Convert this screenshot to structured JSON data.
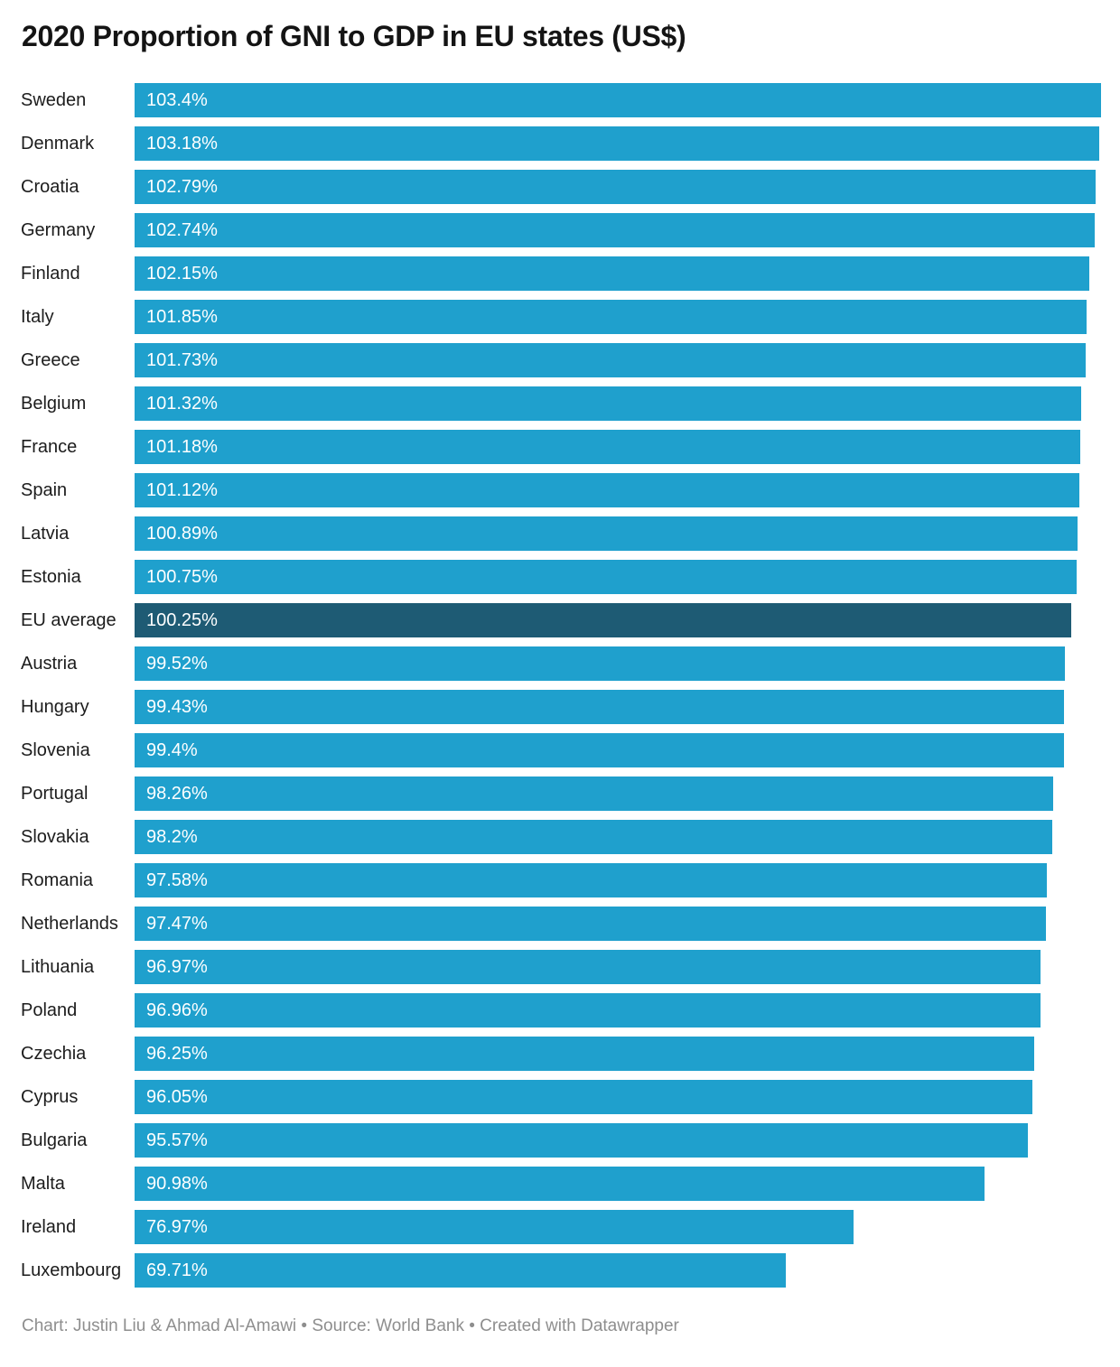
{
  "header": {
    "title": "2020 Proportion of GNI to GDP in EU states (US$)"
  },
  "footer": {
    "text": "Chart: Justin Liu & Ahmad Al-Amawi • Source: World Bank • Created with Datawrapper"
  },
  "colors": {
    "bar": "#1FA0CD",
    "highlight_bar": "#1E5B74",
    "value_label": "#ffffff",
    "category_label": "#1c1c1c",
    "title": "#141414",
    "footer_text": "#8e8e8e",
    "background": "#ffffff"
  },
  "chart_data": {
    "type": "bar",
    "orientation": "horizontal",
    "title": "2020 Proportion of GNI to GDP in EU states (US$)",
    "xlabel": "",
    "ylabel": "",
    "xlim": [
      0,
      103.4
    ],
    "grid": false,
    "legend": false,
    "bar_labels_inside": true,
    "highlight_index": 12,
    "highlight_category": "EU average",
    "categories": [
      "Sweden",
      "Denmark",
      "Croatia",
      "Germany",
      "Finland",
      "Italy",
      "Greece",
      "Belgium",
      "France",
      "Spain",
      "Latvia",
      "Estonia",
      "EU average",
      "Austria",
      "Hungary",
      "Slovenia",
      "Portugal",
      "Slovakia",
      "Romania",
      "Netherlands",
      "Lithuania",
      "Poland",
      "Czechia",
      "Cyprus",
      "Bulgaria",
      "Malta",
      "Ireland",
      "Luxembourg"
    ],
    "values": [
      103.4,
      103.18,
      102.79,
      102.74,
      102.15,
      101.85,
      101.73,
      101.32,
      101.18,
      101.12,
      100.89,
      100.75,
      100.25,
      99.52,
      99.43,
      99.4,
      98.26,
      98.2,
      97.58,
      97.47,
      96.97,
      96.96,
      96.25,
      96.05,
      95.57,
      90.98,
      76.97,
      69.71
    ],
    "value_labels": [
      "103.4%",
      "103.18%",
      "102.79%",
      "102.74%",
      "102.15%",
      "101.85%",
      "101.73%",
      "101.32%",
      "101.18%",
      "101.12%",
      "100.89%",
      "100.75%",
      "100.25%",
      "99.52%",
      "99.43%",
      "99.4%",
      "98.26%",
      "98.2%",
      "97.58%",
      "97.47%",
      "96.97%",
      "96.96%",
      "96.25%",
      "96.05%",
      "95.57%",
      "90.98%",
      "76.97%",
      "69.71%"
    ]
  }
}
